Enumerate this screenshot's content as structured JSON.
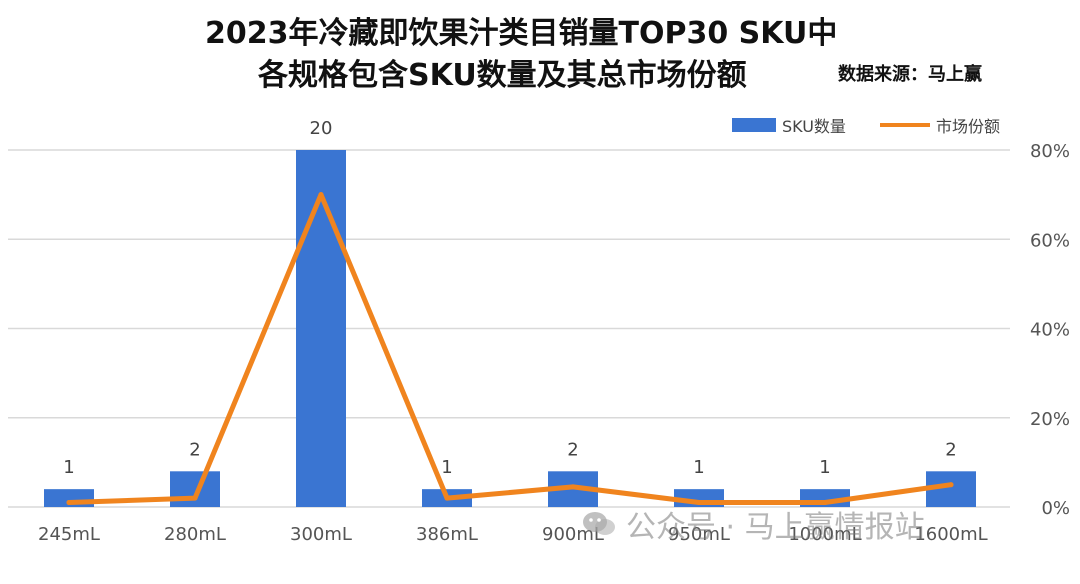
{
  "header": {
    "title_line1": "2023年冷藏即饮果汁类目销量TOP30 SKU中",
    "title_line2": "各规格包含SKU数量及其总市场份额",
    "source": "数据来源：马上赢"
  },
  "watermark": {
    "text": "公众号 · 马上赢情报站",
    "icon": "wechat-icon"
  },
  "colors": {
    "bar": "#3A75D2",
    "line": "#F0841E",
    "grid": "#D9D9D9"
  },
  "chart_data": {
    "type": "bar",
    "categories": [
      "245mL",
      "280mL",
      "300mL",
      "386mL",
      "900mL",
      "950mL",
      "1000mL",
      "1600mL"
    ],
    "series": [
      {
        "name": "SKU数量",
        "type": "bar",
        "axis": "left",
        "values": [
          1,
          2,
          20,
          1,
          2,
          1,
          1,
          2
        ],
        "data_labels": [
          "1",
          "2",
          "20",
          "1",
          "2",
          "1",
          "1",
          "2"
        ]
      },
      {
        "name": "市场份额",
        "type": "line",
        "axis": "right",
        "values": [
          1,
          2,
          70,
          2,
          4.5,
          1,
          1,
          5
        ]
      }
    ],
    "left_axis": {
      "range": [
        0,
        20
      ],
      "visible": false
    },
    "right_axis": {
      "range": [
        0,
        80
      ],
      "ticks": [
        "0%",
        "20%",
        "40%",
        "60%",
        "80%"
      ],
      "unit": "%"
    },
    "grid": true,
    "legend_position": "top-right"
  }
}
